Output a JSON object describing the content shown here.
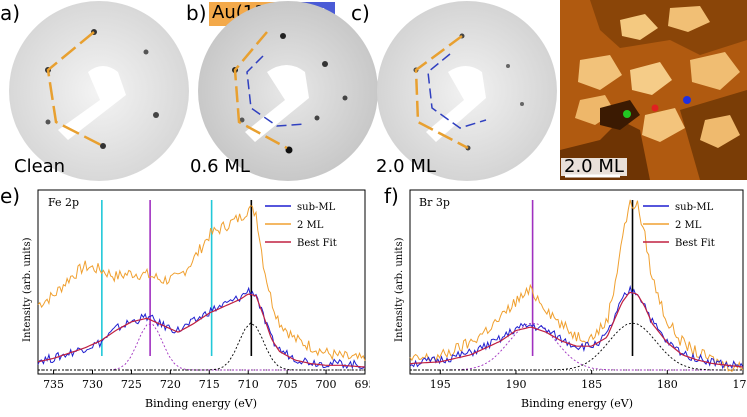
{
  "panels": {
    "a": {
      "label": "a)",
      "caption": "Clean"
    },
    "b": {
      "label": "b)",
      "caption": "0.6 ML"
    },
    "c": {
      "label": "c)",
      "caption": "2.0 ML"
    },
    "d": {
      "label": "d)",
      "caption": "2.0 ML"
    },
    "e": {
      "label": "e)"
    },
    "f": {
      "label": "f)"
    }
  },
  "tags": {
    "au": "Au(111)",
    "fe_main": "FeBr",
    "fe_sub": "2"
  },
  "colors": {
    "sub_ml": "#1f1fd0",
    "two_ml": "#f0a030",
    "best_fit": "#c02040",
    "fe_marker": "#22c8d8",
    "br_marker": "#a030c0",
    "au_hex": "#e8a030",
    "fe_hex": "#3040c0"
  },
  "chart_data": [
    {
      "type": "line",
      "title": "Fe 2p",
      "xlabel": "Binding energy (eV)",
      "ylabel": "Intensity (arb. units)",
      "xlim": [
        737,
        695
      ],
      "ticks": [
        "735",
        "730",
        "725",
        "720",
        "715",
        "710",
        "705",
        "700",
        "695"
      ],
      "legend": [
        "sub-ML",
        "2 ML",
        "Best Fit"
      ],
      "legend_position": "top-right",
      "markers": {
        "cyan": [
          728.8,
          714.7
        ],
        "purple": [
          722.6
        ],
        "black": [
          709.6
        ]
      },
      "series": [
        {
          "name": "2 ML",
          "x": [
            737,
            735,
            733,
            731,
            729,
            727,
            725,
            723,
            721,
            719,
            717,
            715,
            713,
            711,
            710,
            709,
            708,
            707,
            706,
            704,
            702,
            700,
            698,
            695
          ],
          "y": [
            0.4,
            0.45,
            0.55,
            0.62,
            0.6,
            0.56,
            0.58,
            0.57,
            0.54,
            0.55,
            0.66,
            0.8,
            0.85,
            0.9,
            0.95,
            0.93,
            0.62,
            0.42,
            0.3,
            0.2,
            0.16,
            0.12,
            0.1,
            0.08
          ]
        },
        {
          "name": "sub-ML",
          "x": [
            737,
            735,
            733,
            731,
            729,
            727,
            725,
            723,
            721,
            719,
            717,
            715,
            713,
            711,
            710,
            709,
            708,
            707,
            706,
            704,
            702,
            700,
            698,
            695
          ],
          "y": [
            0.08,
            0.09,
            0.12,
            0.15,
            0.18,
            0.26,
            0.3,
            0.33,
            0.28,
            0.25,
            0.3,
            0.36,
            0.4,
            0.44,
            0.48,
            0.46,
            0.32,
            0.2,
            0.14,
            0.09,
            0.07,
            0.06,
            0.06,
            0.05
          ]
        },
        {
          "name": "Best Fit",
          "x": [
            737,
            735,
            733,
            731,
            729,
            727,
            725,
            723,
            721,
            719,
            717,
            715,
            713,
            711,
            710,
            709,
            708,
            707,
            706,
            704,
            702,
            700,
            698,
            695
          ],
          "y": [
            0.07,
            0.09,
            0.12,
            0.15,
            0.19,
            0.25,
            0.3,
            0.32,
            0.28,
            0.24,
            0.29,
            0.35,
            0.39,
            0.43,
            0.46,
            0.45,
            0.33,
            0.2,
            0.13,
            0.08,
            0.06,
            0.05,
            0.05,
            0.04
          ]
        }
      ]
    },
    {
      "type": "line",
      "title": "Br 3p",
      "xlabel": "Binding energy (eV)",
      "ylabel": "Intensity (arb. units)",
      "xlim": [
        197,
        175
      ],
      "ticks": [
        "195",
        "190",
        "185",
        "180",
        "175"
      ],
      "legend": [
        "sub-ML",
        "2 ML",
        "Best Fit"
      ],
      "legend_position": "top-right",
      "markers": {
        "purple": [
          188.9
        ],
        "black": [
          182.3
        ]
      },
      "series": [
        {
          "name": "2 ML",
          "x": [
            197,
            195,
            193,
            191,
            190,
            189,
            188,
            187,
            186,
            185,
            184,
            183.5,
            183,
            182.5,
            182,
            181.5,
            181,
            180,
            179,
            178,
            177,
            176,
            175
          ],
          "y": [
            0.08,
            0.1,
            0.18,
            0.32,
            0.42,
            0.48,
            0.38,
            0.28,
            0.22,
            0.21,
            0.3,
            0.5,
            0.78,
            0.97,
            0.98,
            0.8,
            0.55,
            0.3,
            0.18,
            0.12,
            0.08,
            0.05,
            0.04
          ]
        },
        {
          "name": "sub-ML",
          "x": [
            197,
            195,
            193,
            191,
            190,
            189,
            188,
            187,
            186,
            185,
            184,
            183.5,
            183,
            182.5,
            182,
            181.5,
            181,
            180,
            179,
            178,
            177,
            176,
            175
          ],
          "y": [
            0.06,
            0.08,
            0.12,
            0.2,
            0.26,
            0.28,
            0.25,
            0.2,
            0.16,
            0.16,
            0.22,
            0.32,
            0.42,
            0.48,
            0.47,
            0.4,
            0.3,
            0.18,
            0.12,
            0.09,
            0.07,
            0.05,
            0.05
          ]
        },
        {
          "name": "Best Fit",
          "x": [
            197,
            195,
            193,
            191,
            190,
            189,
            188,
            187,
            186,
            185,
            184,
            183.5,
            183,
            182.5,
            182,
            181.5,
            181,
            180,
            179,
            178,
            177,
            176,
            175
          ],
          "y": [
            0.06,
            0.07,
            0.11,
            0.19,
            0.25,
            0.27,
            0.24,
            0.19,
            0.16,
            0.16,
            0.21,
            0.31,
            0.41,
            0.47,
            0.46,
            0.39,
            0.29,
            0.18,
            0.11,
            0.08,
            0.06,
            0.05,
            0.04
          ]
        }
      ]
    }
  ]
}
